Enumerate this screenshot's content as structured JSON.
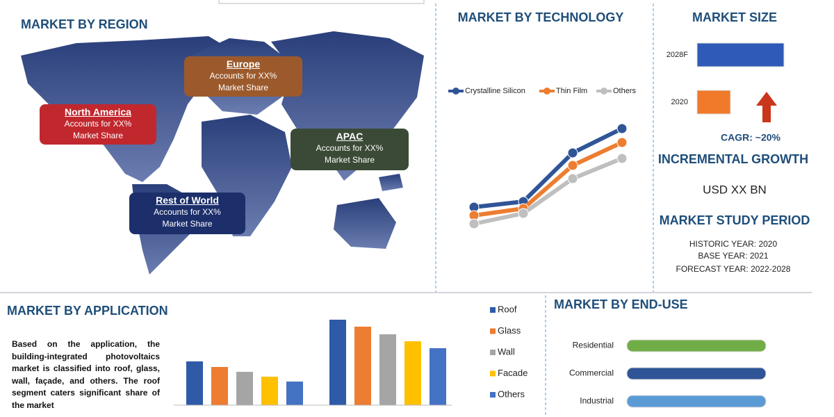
{
  "region": {
    "title": "MARKET BY REGION",
    "labels": [
      {
        "name": "Europe",
        "lines": [
          "Accounts for XX%",
          "Market Share"
        ]
      },
      {
        "name": "North America",
        "lines": [
          "Accounts for XX%",
          "Market Share"
        ]
      },
      {
        "name": "APAC",
        "lines": [
          "Accounts for XX%",
          "Market Share"
        ]
      },
      {
        "name": "Rest of World",
        "lines": [
          "Accounts for XX%",
          "Market Share"
        ]
      }
    ]
  },
  "chart_data": [
    {
      "type": "line",
      "title": "MARKET BY TECHNOLOGY",
      "series": [
        {
          "name": "Crystalline Silicon",
          "color": "#2f5597",
          "values": [
            42,
            50,
            120,
            155
          ]
        },
        {
          "name": "Thin Film",
          "color": "#ed7d31",
          "values": [
            30,
            40,
            102,
            135
          ]
        },
        {
          "name": "Others",
          "color": "#bfbfbf",
          "values": [
            18,
            33,
            83,
            112
          ]
        }
      ]
    },
    {
      "type": "bar",
      "horizontal": true,
      "title": "MARKET SIZE",
      "categories": [
        "2028F",
        "2020"
      ],
      "values": [
        125,
        48
      ],
      "colors": [
        "#2f5ab8",
        "#f07a2a"
      ]
    },
    {
      "type": "bar",
      "title": "MARKET BY APPLICATION",
      "categories": [
        null,
        null
      ],
      "series": [
        {
          "name": "Roof",
          "color": "#2e5aa8",
          "values": [
            63,
            123
          ]
        },
        {
          "name": "Glass",
          "color": "#ed7d31",
          "values": [
            55,
            113
          ]
        },
        {
          "name": "Wall",
          "color": "#a5a5a5",
          "values": [
            48,
            102
          ]
        },
        {
          "name": "Facade",
          "color": "#ffc000",
          "values": [
            41,
            92
          ]
        },
        {
          "name": "Others",
          "color": "#4472c4",
          "values": [
            34,
            82
          ]
        }
      ]
    },
    {
      "type": "bar",
      "horizontal": true,
      "title": "MARKET BY END-USE",
      "categories": [
        "Residential",
        "Commercial",
        "Industrial"
      ],
      "values": [
        200,
        200,
        200
      ],
      "colors": [
        "#70ad47",
        "#2f5597",
        "#5b9bd5"
      ]
    }
  ],
  "size_info": {
    "cagr": "CAGR:  ~20%",
    "incremental_title": "INCREMENTAL GROWTH",
    "incremental_value": "USD XX BN",
    "study_title": "MARKET STUDY PERIOD",
    "study_lines": [
      "HISTORIC YEAR: 2020",
      "BASE YEAR: 2021",
      "FORECAST YEAR: 2022-2028"
    ]
  },
  "application_text": "Based on the application, the building-integrated photovoltaics market is classified into roof, glass, wall, façade, and others. The roof segment caters significant share of the market"
}
